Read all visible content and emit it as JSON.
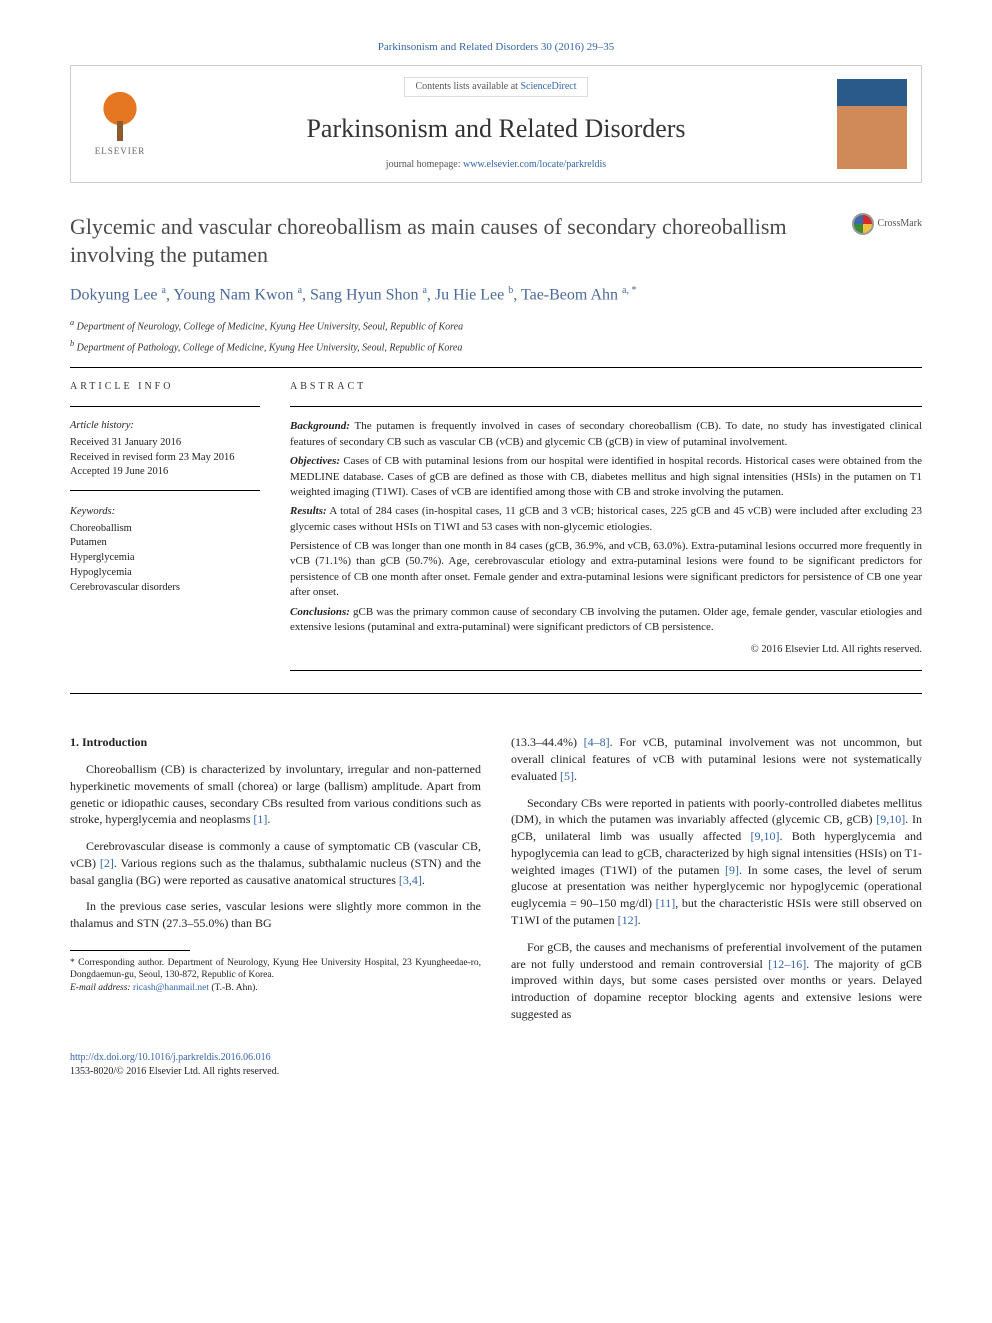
{
  "citation": "Parkinsonism and Related Disorders 30 (2016) 29–35",
  "header": {
    "contents_prefix": "Contents lists available at ",
    "contents_link": "ScienceDirect",
    "journal_name": "Parkinsonism and Related Disorders",
    "homepage_prefix": "journal homepage: ",
    "homepage_url": "www.elsevier.com/locate/parkreldis",
    "publisher_logo_label": "ELSEVIER",
    "crossmark_label": "CrossMark"
  },
  "article": {
    "title": "Glycemic and vascular choreoballism as main causes of secondary choreoballism involving the putamen",
    "authors_html": "Dokyung Lee <sup>a</sup>, Young Nam Kwon <sup>a</sup>, Sang Hyun Shon <sup>a</sup>, Ju Hie Lee <sup>b</sup>, Tae-Beom Ahn <sup>a, *</sup>",
    "affiliations": {
      "a": "Department of Neurology, College of Medicine, Kyung Hee University, Seoul, Republic of Korea",
      "b": "Department of Pathology, College of Medicine, Kyung Hee University, Seoul, Republic of Korea"
    }
  },
  "article_info": {
    "heading": "ARTICLE INFO",
    "history_label": "Article history:",
    "history": [
      "Received 31 January 2016",
      "Received in revised form 23 May 2016",
      "Accepted 19 June 2016"
    ],
    "keywords_label": "Keywords:",
    "keywords": [
      "Choreoballism",
      "Putamen",
      "Hyperglycemia",
      "Hypoglycemia",
      "Cerebrovascular disorders"
    ]
  },
  "abstract": {
    "heading": "ABSTRACT",
    "background_label": "Background:",
    "background": "The putamen is frequently involved in cases of secondary choreoballism (CB). To date, no study has investigated clinical features of secondary CB such as vascular CB (vCB) and glycemic CB (gCB) in view of putaminal involvement.",
    "objectives_label": "Objectives:",
    "objectives": "Cases of CB with putaminal lesions from our hospital were identified in hospital records. Historical cases were obtained from the MEDLINE database. Cases of gCB are defined as those with CB, diabetes mellitus and high signal intensities (HSIs) in the putamen on T1 weighted imaging (T1WI). Cases of vCB are identified among those with CB and stroke involving the putamen.",
    "results_label": "Results:",
    "results_p1": "A total of 284 cases (in-hospital cases, 11 gCB and 3 vCB; historical cases, 225 gCB and 45 vCB) were included after excluding 23 glycemic cases without HSIs on T1WI and 53 cases with non-glycemic etiologies.",
    "results_p2": "Persistence of CB was longer than one month in 84 cases (gCB, 36.9%, and vCB, 63.0%). Extra-putaminal lesions occurred more frequently in vCB (71.1%) than gCB (50.7%). Age, cerebrovascular etiology and extra-putaminal lesions were found to be significant predictors for persistence of CB one month after onset. Female gender and extra-putaminal lesions were significant predictors for persistence of CB one year after onset.",
    "conclusions_label": "Conclusions:",
    "conclusions": "gCB was the primary common cause of secondary CB involving the putamen. Older age, female gender, vascular etiologies and extensive lesions (putaminal and extra-putaminal) were significant predictors of CB persistence.",
    "copyright": "© 2016 Elsevier Ltd. All rights reserved."
  },
  "body": {
    "section_heading": "1. Introduction",
    "left": {
      "p1": "Choreoballism (CB) is characterized by involuntary, irregular and non-patterned hyperkinetic movements of small (chorea) or large (ballism) amplitude. Apart from genetic or idiopathic causes, secondary CBs resulted from various conditions such as stroke, hyperglycemia and neoplasms ",
      "p1_ref": "[1]",
      "p2": "Cerebrovascular disease is commonly a cause of symptomatic CB (vascular CB, vCB) ",
      "p2_ref": "[2]",
      "p2b": ". Various regions such as the thalamus, subthalamic nucleus (STN) and the basal ganglia (BG) were reported as causative anatomical structures ",
      "p2b_ref": "[3,4]",
      "p3": "In the previous case series, vascular lesions were slightly more common in the thalamus and STN (27.3–55.0%) than BG"
    },
    "right": {
      "p1a": "(13.3–44.4%) ",
      "p1a_ref": "[4–8]",
      "p1b": ". For vCB, putaminal involvement was not uncommon, but overall clinical features of vCB with putaminal lesions were not systematically evaluated ",
      "p1b_ref": "[5]",
      "p2a": "Secondary CBs were reported in patients with poorly-controlled diabetes mellitus (DM), in which the putamen was invariably affected (glycemic CB, gCB) ",
      "p2a_ref": "[9,10]",
      "p2b": ". In gCB, unilateral limb was usually affected ",
      "p2b_ref": "[9,10]",
      "p2c": ". Both hyperglycemia and hypoglycemia can lead to gCB, characterized by high signal intensities (HSIs) on T1-weighted images (T1WI) of the putamen ",
      "p2c_ref": "[9]",
      "p2d": ". In some cases, the level of serum glucose at presentation was neither hyperglycemic nor hypoglycemic (operational euglycemia = 90–150 mg/dl) ",
      "p2d_ref": "[11]",
      "p2e": ", but the characteristic HSIs were still observed on T1WI of the putamen ",
      "p2e_ref": "[12]",
      "p3a": "For gCB, the causes and mechanisms of preferential involvement of the putamen are not fully understood and remain controversial ",
      "p3a_ref": "[12–16]",
      "p3b": ". The majority of gCB improved within days, but some cases persisted over months or years. Delayed introduction of dopamine receptor blocking agents and extensive lesions were suggested as"
    }
  },
  "footnote": {
    "corr_label": "* Corresponding author.",
    "corr_text": " Department of Neurology, Kyung Hee University Hospital, 23 Kyungheedae-ro, Dongdaemun-gu, Seoul, 130-872, Republic of Korea.",
    "email_label": "E-mail address: ",
    "email": "ricash@hanmail.net",
    "email_suffix": " (T.-B. Ahn)."
  },
  "footer": {
    "doi": "http://dx.doi.org/10.1016/j.parkreldis.2016.06.016",
    "issn_line": "1353-8020/© 2016 Elsevier Ltd. All rights reserved."
  },
  "colors": {
    "link": "#3366aa",
    "title_gray": "#4a4a4a",
    "author_blue": "#4a6a9a",
    "elsevier_orange": "#e67722"
  }
}
